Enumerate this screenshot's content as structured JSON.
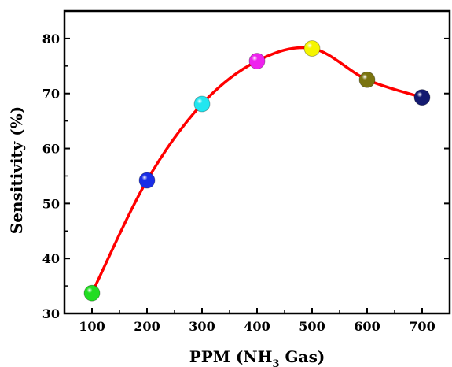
{
  "chart_data": {
    "type": "line",
    "title": "",
    "xlabel": "PPM (NH₃ Gas)",
    "xlabel_parts": {
      "pre": "PPM (NH",
      "sub": "3",
      "post": " Gas)"
    },
    "ylabel": "Sensitivity (%)",
    "xlim": [
      50,
      750
    ],
    "ylim": [
      30,
      85
    ],
    "x_ticks": [
      100,
      200,
      300,
      400,
      500,
      600,
      700
    ],
    "y_ticks": [
      30,
      40,
      50,
      60,
      70,
      80
    ],
    "grid": false,
    "legend": "none",
    "line_color": "#ff0000",
    "series": [
      {
        "x": [
          100,
          200,
          300,
          400,
          500,
          600,
          700
        ],
        "values": [
          33.7,
          54.2,
          68.1,
          75.9,
          78.2,
          72.5,
          69.3
        ],
        "marker_colors": [
          "#22dd22",
          "#1a2ee6",
          "#22e6f0",
          "#ee22ee",
          "#f5f500",
          "#7a7410",
          "#141a70"
        ]
      }
    ]
  }
}
